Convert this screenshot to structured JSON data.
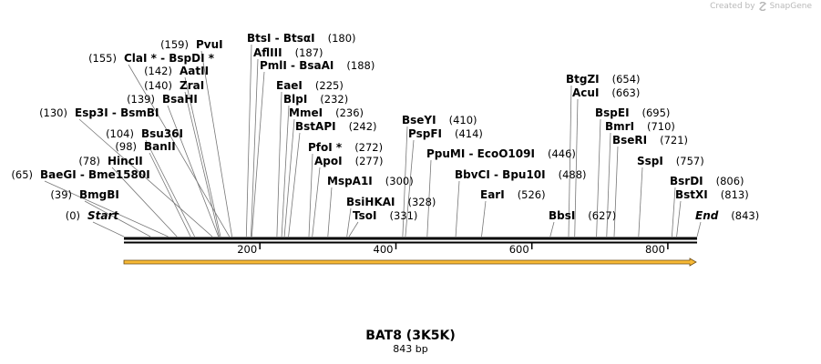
{
  "watermark": {
    "text": "Created by",
    "brand": "SnapGene"
  },
  "sequence": {
    "name": "BAT8 (3K5K)",
    "length_label": "843 bp",
    "length": 843
  },
  "colors": {
    "feature_fill": "#f7b935",
    "feature_stroke": "#6b4a10",
    "line": "#000000",
    "connector": "#777777"
  },
  "axis": {
    "ticks": [
      200,
      400,
      600,
      800
    ]
  },
  "sites": [
    {
      "name": "Start",
      "pos": 0,
      "style": "italic"
    },
    {
      "name": "BmgBI",
      "pos": 39
    },
    {
      "name": "BaeGI - Bme1580I",
      "pos": 65
    },
    {
      "name": "HincII",
      "pos": 78
    },
    {
      "name": "BanII",
      "pos": 98
    },
    {
      "name": "Bsu36I",
      "pos": 104
    },
    {
      "name": "Esp3I - BsmBI",
      "pos": 130
    },
    {
      "name": "BsaHI",
      "pos": 139
    },
    {
      "name": "ZraI",
      "pos": 140
    },
    {
      "name": "AatII",
      "pos": 142
    },
    {
      "name": "ClaI * - BspDI *",
      "pos": 155
    },
    {
      "name": "PvuI",
      "pos": 159
    },
    {
      "name": "BtsI - BtsαI",
      "pos": 180
    },
    {
      "name": "AflIII",
      "pos": 187
    },
    {
      "name": "PmlI - BsaAI",
      "pos": 188
    },
    {
      "name": "EaeI",
      "pos": 225
    },
    {
      "name": "BlpI",
      "pos": 232
    },
    {
      "name": "MmeI",
      "pos": 236
    },
    {
      "name": "BstAPI",
      "pos": 242
    },
    {
      "name": "PfoI *",
      "pos": 272
    },
    {
      "name": "ApoI",
      "pos": 277
    },
    {
      "name": "MspA1I",
      "pos": 300
    },
    {
      "name": "BsiHKAI",
      "pos": 328
    },
    {
      "name": "TsoI",
      "pos": 331
    },
    {
      "name": "BseYI",
      "pos": 410
    },
    {
      "name": "PspFI",
      "pos": 414
    },
    {
      "name": "PpuMI - EcoO109I",
      "pos": 446
    },
    {
      "name": "BbvCI - Bpu10I",
      "pos": 488
    },
    {
      "name": "EarI",
      "pos": 526
    },
    {
      "name": "BbsI",
      "pos": 627
    },
    {
      "name": "BtgZI",
      "pos": 654
    },
    {
      "name": "AcuI",
      "pos": 663
    },
    {
      "name": "BspEI",
      "pos": 695
    },
    {
      "name": "BmrI",
      "pos": 710
    },
    {
      "name": "BseRI",
      "pos": 721
    },
    {
      "name": "SspI",
      "pos": 757
    },
    {
      "name": "BsrDI",
      "pos": 806
    },
    {
      "name": "BstXI",
      "pos": 813
    },
    {
      "name": "End",
      "pos": 843,
      "style": "italic"
    }
  ]
}
